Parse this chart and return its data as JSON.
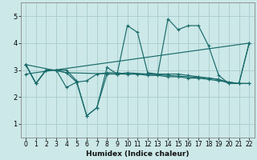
{
  "xlabel": "Humidex (Indice chaleur)",
  "bg_color": "#cce8e8",
  "grid_color": "#aacccc",
  "line_color": "#1a6b6b",
  "xlim": [
    -0.5,
    22.5
  ],
  "ylim": [
    0.5,
    5.5
  ],
  "xticks": [
    0,
    1,
    2,
    3,
    4,
    5,
    6,
    7,
    8,
    9,
    10,
    11,
    12,
    13,
    14,
    15,
    16,
    17,
    18,
    19,
    20,
    21,
    22
  ],
  "yticks": [
    1,
    2,
    3,
    4,
    5
  ],
  "series": [
    {
      "x": [
        0,
        1,
        2,
        3,
        4,
        5,
        6,
        7,
        8,
        9,
        10,
        11,
        12,
        13,
        14,
        15,
        16,
        17,
        18,
        19,
        20,
        21,
        22
      ],
      "y": [
        3.2,
        2.5,
        3.0,
        3.0,
        3.0,
        2.6,
        1.3,
        1.6,
        3.1,
        2.85,
        4.65,
        4.4,
        2.9,
        2.85,
        4.9,
        4.5,
        4.65,
        4.65,
        3.9,
        2.8,
        2.5,
        2.5,
        4.0
      ]
    },
    {
      "x": [
        0,
        22
      ],
      "y": [
        2.85,
        4.0
      ]
    },
    {
      "x": [
        0,
        1,
        2,
        3,
        4,
        5,
        6,
        7,
        8,
        9,
        10,
        11,
        12,
        13,
        14,
        15,
        16,
        17,
        18,
        19,
        20,
        21,
        22
      ],
      "y": [
        3.2,
        2.5,
        3.0,
        3.0,
        2.9,
        2.55,
        2.6,
        2.85,
        2.9,
        2.9,
        2.85,
        2.85,
        2.8,
        2.8,
        2.75,
        2.75,
        2.7,
        2.7,
        2.65,
        2.6,
        2.55,
        2.5,
        2.5
      ]
    },
    {
      "x": [
        0,
        1,
        2,
        3,
        4,
        5,
        6,
        7,
        8,
        9,
        10,
        11,
        12,
        13,
        14,
        15,
        16,
        17,
        18,
        19,
        20,
        21,
        22
      ],
      "y": [
        3.2,
        2.5,
        3.0,
        3.0,
        2.35,
        2.55,
        1.3,
        1.6,
        2.85,
        2.85,
        2.85,
        2.85,
        2.85,
        2.85,
        2.85,
        2.85,
        2.8,
        2.75,
        2.7,
        2.65,
        2.55,
        2.5,
        2.5
      ]
    },
    {
      "x": [
        0,
        4,
        9,
        10,
        18,
        19,
        20,
        21,
        22
      ],
      "y": [
        3.2,
        2.9,
        2.85,
        2.9,
        2.7,
        2.65,
        2.5,
        2.5,
        4.0
      ]
    }
  ]
}
